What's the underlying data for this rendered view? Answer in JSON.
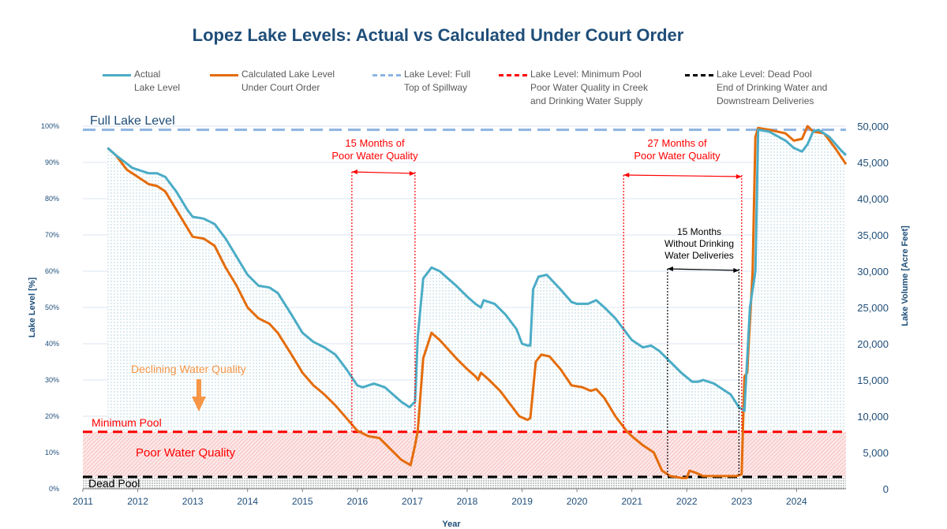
{
  "chart_data": {
    "type": "line",
    "title": "Lopez Lake Levels:  Actual vs Calculated Under Court Order",
    "xlabel": "Year",
    "ylabel": "Lake Level [%]",
    "y2label": "Lake Volume [Acre Feet]",
    "xlim": [
      2011,
      2024.9
    ],
    "ylim": [
      0,
      100
    ],
    "y2lim": [
      0,
      50000
    ],
    "x_ticks": [
      "2011",
      "2012",
      "2013",
      "2014",
      "2015",
      "2016",
      "2017",
      "2018",
      "2019",
      "2020",
      "2021",
      "2022",
      "2023",
      "2024"
    ],
    "y_ticks": [
      "0%",
      "10%",
      "20%",
      "30%",
      "40%",
      "50%",
      "60%",
      "70%",
      "80%",
      "90%",
      "100%"
    ],
    "y2_ticks": [
      "0",
      "5,000",
      "10,000",
      "15,000",
      "20,000",
      "25,000",
      "30,000",
      "35,000",
      "40,000",
      "45,000",
      "50,000"
    ],
    "legend_position": "top",
    "grid": true,
    "series": [
      {
        "name": "Actual\nLake Level",
        "color": "#4bacc6",
        "points": [
          [
            2011.45,
            94
          ],
          [
            2011.6,
            92
          ],
          [
            2011.9,
            88.5
          ],
          [
            2012.2,
            87
          ],
          [
            2012.35,
            87
          ],
          [
            2012.5,
            86
          ],
          [
            2012.7,
            82
          ],
          [
            2012.9,
            77
          ],
          [
            2013.0,
            75
          ],
          [
            2013.2,
            74.5
          ],
          [
            2013.4,
            73
          ],
          [
            2013.6,
            69
          ],
          [
            2013.8,
            64
          ],
          [
            2014.0,
            59
          ],
          [
            2014.2,
            56
          ],
          [
            2014.4,
            55.5
          ],
          [
            2014.55,
            54
          ],
          [
            2014.8,
            48
          ],
          [
            2015.0,
            43
          ],
          [
            2015.2,
            40.5
          ],
          [
            2015.4,
            39
          ],
          [
            2015.6,
            37
          ],
          [
            2015.8,
            33
          ],
          [
            2016.0,
            28.5
          ],
          [
            2016.1,
            28
          ],
          [
            2016.3,
            29
          ],
          [
            2016.5,
            28
          ],
          [
            2016.8,
            24
          ],
          [
            2016.95,
            22.5
          ],
          [
            2017.05,
            24
          ],
          [
            2017.1,
            42
          ],
          [
            2017.2,
            58
          ],
          [
            2017.35,
            61
          ],
          [
            2017.5,
            60
          ],
          [
            2017.8,
            56
          ],
          [
            2018.0,
            53
          ],
          [
            2018.15,
            51
          ],
          [
            2018.25,
            50
          ],
          [
            2018.3,
            52
          ],
          [
            2018.5,
            51
          ],
          [
            2018.7,
            48
          ],
          [
            2018.9,
            44
          ],
          [
            2019.0,
            40
          ],
          [
            2019.1,
            39.5
          ],
          [
            2019.15,
            39.5
          ],
          [
            2019.2,
            55
          ],
          [
            2019.3,
            58.5
          ],
          [
            2019.45,
            59
          ],
          [
            2019.7,
            55
          ],
          [
            2019.9,
            51.5
          ],
          [
            2020.0,
            51
          ],
          [
            2020.2,
            51
          ],
          [
            2020.35,
            52
          ],
          [
            2020.5,
            50
          ],
          [
            2020.7,
            47
          ],
          [
            2020.9,
            43
          ],
          [
            2021.0,
            41
          ],
          [
            2021.2,
            39
          ],
          [
            2021.35,
            39.5
          ],
          [
            2021.5,
            38
          ],
          [
            2021.7,
            35
          ],
          [
            2021.9,
            32
          ],
          [
            2022.1,
            29.5
          ],
          [
            2022.2,
            29.5
          ],
          [
            2022.3,
            30
          ],
          [
            2022.5,
            29
          ],
          [
            2022.8,
            26
          ],
          [
            2022.95,
            22.5
          ],
          [
            2023.05,
            21.5
          ],
          [
            2023.15,
            50
          ],
          [
            2023.25,
            60
          ],
          [
            2023.3,
            99
          ],
          [
            2023.5,
            98.5
          ],
          [
            2023.8,
            96
          ],
          [
            2023.95,
            94
          ],
          [
            2024.1,
            93
          ],
          [
            2024.2,
            95
          ],
          [
            2024.3,
            98.5
          ],
          [
            2024.4,
            99
          ],
          [
            2024.6,
            97
          ],
          [
            2024.8,
            93.5
          ],
          [
            2024.9,
            92
          ]
        ]
      },
      {
        "name": "Calculated Lake Level\nUnder Court Order",
        "color": "#e46c0a",
        "points": [
          [
            2011.45,
            94
          ],
          [
            2011.6,
            92
          ],
          [
            2011.8,
            88
          ],
          [
            2012.0,
            86
          ],
          [
            2012.2,
            84
          ],
          [
            2012.35,
            83.5
          ],
          [
            2012.5,
            82
          ],
          [
            2012.7,
            77
          ],
          [
            2012.9,
            72
          ],
          [
            2013.0,
            69.5
          ],
          [
            2013.2,
            69
          ],
          [
            2013.4,
            67
          ],
          [
            2013.6,
            61
          ],
          [
            2013.8,
            56
          ],
          [
            2014.0,
            50
          ],
          [
            2014.2,
            47
          ],
          [
            2014.4,
            45.5
          ],
          [
            2014.55,
            43
          ],
          [
            2014.8,
            37
          ],
          [
            2015.0,
            32
          ],
          [
            2015.2,
            28.5
          ],
          [
            2015.4,
            26
          ],
          [
            2015.6,
            23
          ],
          [
            2015.8,
            19.5
          ],
          [
            2016.0,
            16
          ],
          [
            2016.2,
            14.5
          ],
          [
            2016.4,
            14
          ],
          [
            2016.6,
            11
          ],
          [
            2016.8,
            8
          ],
          [
            2016.97,
            6.5
          ],
          [
            2017.05,
            12
          ],
          [
            2017.1,
            16
          ],
          [
            2017.2,
            36
          ],
          [
            2017.35,
            43
          ],
          [
            2017.5,
            41
          ],
          [
            2017.8,
            36
          ],
          [
            2018.0,
            33
          ],
          [
            2018.15,
            31
          ],
          [
            2018.2,
            30
          ],
          [
            2018.25,
            32
          ],
          [
            2018.4,
            30
          ],
          [
            2018.6,
            27
          ],
          [
            2018.8,
            23
          ],
          [
            2018.95,
            20
          ],
          [
            2019.1,
            19
          ],
          [
            2019.15,
            19.5
          ],
          [
            2019.25,
            35
          ],
          [
            2019.35,
            37
          ],
          [
            2019.5,
            36.5
          ],
          [
            2019.7,
            33
          ],
          [
            2019.9,
            28.5
          ],
          [
            2020.1,
            28
          ],
          [
            2020.25,
            27
          ],
          [
            2020.35,
            27.5
          ],
          [
            2020.5,
            25
          ],
          [
            2020.7,
            20
          ],
          [
            2020.9,
            16
          ],
          [
            2021.0,
            14.5
          ],
          [
            2021.2,
            12
          ],
          [
            2021.4,
            10
          ],
          [
            2021.55,
            5
          ],
          [
            2021.7,
            3.5
          ],
          [
            2021.9,
            3
          ],
          [
            2022.0,
            3
          ],
          [
            2022.05,
            5
          ],
          [
            2022.15,
            4.5
          ],
          [
            2022.3,
            3.5
          ],
          [
            2022.6,
            3.5
          ],
          [
            2022.9,
            3.5
          ],
          [
            2023.0,
            4
          ],
          [
            2023.05,
            31
          ],
          [
            2023.1,
            32
          ],
          [
            2023.2,
            60
          ],
          [
            2023.25,
            97
          ],
          [
            2023.3,
            99.5
          ],
          [
            2023.5,
            99
          ],
          [
            2023.8,
            98
          ],
          [
            2023.95,
            96
          ],
          [
            2024.1,
            96.5
          ],
          [
            2024.2,
            100
          ],
          [
            2024.3,
            98.5
          ],
          [
            2024.5,
            98
          ],
          [
            2024.7,
            94
          ],
          [
            2024.9,
            89.5
          ]
        ]
      },
      {
        "name": "Lake Level: Full\nTop of Spillway",
        "color": "#8db4e2",
        "dashed": true,
        "value": 99
      },
      {
        "name": "Lake Level: Minimum Pool\nPoor Water Quality in Creek\nand Drinking Water Supply",
        "color": "#ff0000",
        "dashed": true,
        "value": 15.7
      },
      {
        "name": "Lake Level: Dead Pool\nEnd of Drinking Water and\nDownstream Deliveries",
        "color": "#000000",
        "dashed": true,
        "value": 3.3
      }
    ],
    "annotations": [
      {
        "text": "Full Lake Level",
        "color": "#1f4e79"
      },
      {
        "text": "Minimum Pool",
        "color": "#ff0000"
      },
      {
        "text": "Dead Pool",
        "color": "#000000"
      },
      {
        "text": "Poor Water Quality",
        "color": "#ff0000"
      },
      {
        "text": "Declining Water Quality",
        "color": "#f79646"
      },
      {
        "text": "15 Months of\nPoor Water Quality",
        "color": "#ff0000",
        "x_range": [
          2015.9,
          2017.05
        ]
      },
      {
        "text": "27 Months of\nPoor Water Quality",
        "color": "#ff0000",
        "x_range": [
          2020.85,
          2023.0
        ]
      },
      {
        "text": "15 Months\nWithout Drinking\nWater Deliveries",
        "color": "#000000",
        "x_range": [
          2021.65,
          2022.95
        ]
      }
    ]
  }
}
